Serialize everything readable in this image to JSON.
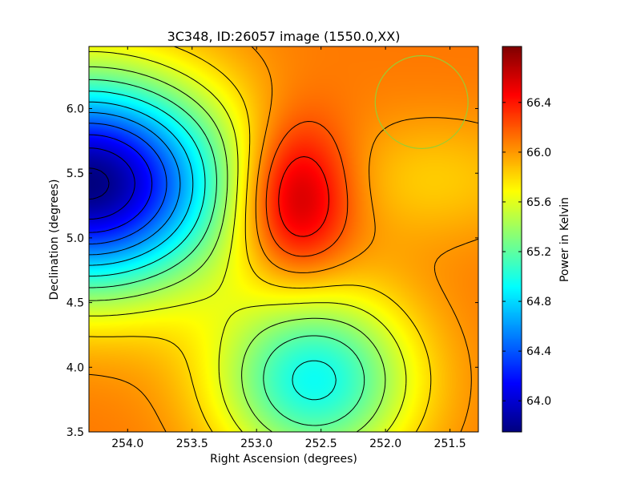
{
  "chart_data": {
    "type": "heatmap",
    "title": "3C348, ID:26057 image (1550.0,XX)",
    "xlabel": "Right Ascension (degrees)",
    "ylabel": "Declination (degrees)",
    "colorbar_label": "Power in Kelvin",
    "colormap": "jet",
    "xlim": [
      254.3,
      251.28
    ],
    "ylim": [
      3.5,
      6.48
    ],
    "zlim": [
      63.75,
      66.85
    ],
    "x_ticks": [
      254.0,
      253.5,
      253.0,
      252.5,
      252.0,
      251.5
    ],
    "x_tick_labels": [
      "254.0",
      "253.5",
      "253.0",
      "252.5",
      "252.0",
      "251.5"
    ],
    "y_ticks": [
      3.5,
      4.0,
      4.5,
      5.0,
      5.5,
      6.0
    ],
    "y_tick_labels": [
      "3.5",
      "4.0",
      "4.5",
      "5.0",
      "5.5",
      "6.0"
    ],
    "colorbar_ticks": [
      64.0,
      64.4,
      64.8,
      65.2,
      65.6,
      66.0,
      66.4
    ],
    "colorbar_tick_labels": [
      "64.0",
      "64.4",
      "64.8",
      "65.2",
      "65.6",
      "66.0",
      "66.4"
    ],
    "field": {
      "base": 66.1,
      "features": [
        {
          "kind": "minimum",
          "ra": 254.3,
          "dec": 5.42,
          "amplitude": -2.35,
          "sigma_ra": 0.75,
          "sigma_dec": 0.58
        },
        {
          "kind": "maximum",
          "ra": 252.7,
          "dec": 5.3,
          "amplitude": 0.75,
          "sigma_ra": 0.3,
          "sigma_dec": 0.42
        },
        {
          "kind": "minimum",
          "ra": 252.55,
          "dec": 3.9,
          "amplitude": -1.15,
          "sigma_ra": 0.55,
          "sigma_dec": 0.5
        },
        {
          "kind": "minimum",
          "ra": 251.6,
          "dec": 5.45,
          "amplitude": -0.25,
          "sigma_ra": 0.6,
          "sigma_dec": 0.35
        }
      ]
    },
    "beam_circle": {
      "ra": 251.72,
      "dec": 6.05,
      "radius_deg": 0.36,
      "color": "#9acd32"
    },
    "contour_step": 0.2,
    "grid": false
  }
}
